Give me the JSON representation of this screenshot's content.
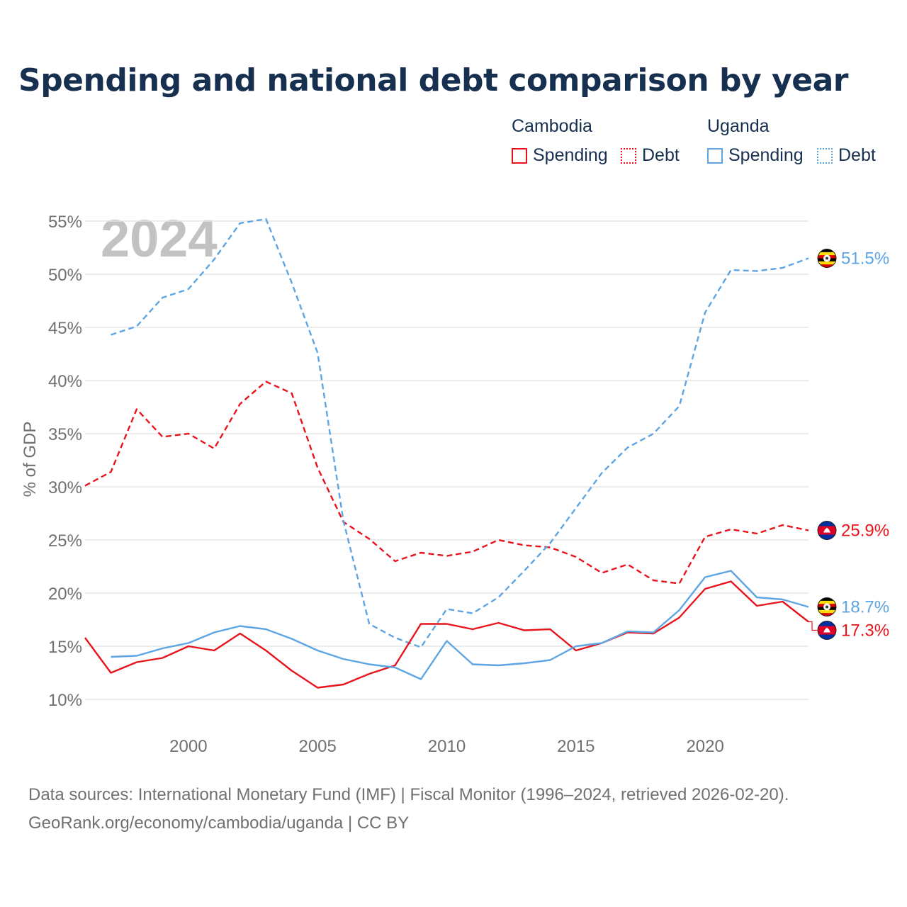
{
  "header": {
    "title": "Spending and national debt comparison by year"
  },
  "legend": {
    "groups": [
      {
        "country": "Cambodia",
        "color": "#e8141c",
        "spending_label": "Spending",
        "debt_label": "Debt"
      },
      {
        "country": "Uganda",
        "color": "#5da5e3",
        "spending_label": "Spending",
        "debt_label": "Debt"
      }
    ]
  },
  "footer": {
    "source": "Data sources: International Monetary Fund (IMF) | Fiscal Monitor (1996–2024, retrieved 2026-02-20).",
    "credit": "GeoRank.org/economy/cambodia/uganda | CC BY"
  },
  "chart_data": {
    "type": "line",
    "title": "Spending and national debt comparison by year",
    "watermark_year": "2024",
    "xlabel": "",
    "ylabel": "% of GDP",
    "xlim": [
      1996,
      2024
    ],
    "ylim": [
      7,
      57
    ],
    "x_ticks": [
      2000,
      2005,
      2010,
      2015,
      2020
    ],
    "y_ticks": [
      10,
      15,
      20,
      25,
      30,
      35,
      40,
      45,
      50,
      55
    ],
    "y_tick_suffix": "%",
    "grid": true,
    "series": [
      {
        "name": "Cambodia Debt",
        "country": "Cambodia",
        "metric": "Debt",
        "flag": "cambodia",
        "color": "#e8141c",
        "dash": true,
        "end_label": "25.9%",
        "points": [
          [
            1996,
            30.1
          ],
          [
            1997,
            31.4
          ],
          [
            1998,
            37.3
          ],
          [
            1999,
            34.7
          ],
          [
            2000,
            35.0
          ],
          [
            2001,
            33.6
          ],
          [
            2002,
            37.8
          ],
          [
            2003,
            39.9
          ],
          [
            2004,
            38.8
          ],
          [
            2005,
            31.8
          ],
          [
            2006,
            26.7
          ],
          [
            2007,
            25.1
          ],
          [
            2008,
            23.0
          ],
          [
            2009,
            23.8
          ],
          [
            2010,
            23.5
          ],
          [
            2011,
            23.9
          ],
          [
            2012,
            25.0
          ],
          [
            2013,
            24.5
          ],
          [
            2014,
            24.3
          ],
          [
            2015,
            23.4
          ],
          [
            2016,
            21.9
          ],
          [
            2017,
            22.7
          ],
          [
            2018,
            21.2
          ],
          [
            2019,
            20.9
          ],
          [
            2020,
            25.3
          ],
          [
            2021,
            26.0
          ],
          [
            2022,
            25.6
          ],
          [
            2023,
            26.4
          ],
          [
            2024,
            25.9
          ]
        ]
      },
      {
        "name": "Uganda Debt",
        "country": "Uganda",
        "metric": "Debt",
        "flag": "uganda",
        "color": "#5da5e3",
        "dash": true,
        "end_label": "51.5%",
        "points": [
          [
            1997,
            44.3
          ],
          [
            1998,
            45.1
          ],
          [
            1999,
            47.8
          ],
          [
            2000,
            48.6
          ],
          [
            2001,
            51.4
          ],
          [
            2002,
            54.8
          ],
          [
            2003,
            55.2
          ],
          [
            2004,
            49.2
          ],
          [
            2005,
            42.6
          ],
          [
            2006,
            26.8
          ],
          [
            2007,
            17.1
          ],
          [
            2008,
            15.8
          ],
          [
            2009,
            14.9
          ],
          [
            2010,
            18.5
          ],
          [
            2011,
            18.1
          ],
          [
            2012,
            19.6
          ],
          [
            2013,
            22.1
          ],
          [
            2014,
            24.7
          ],
          [
            2015,
            28.0
          ],
          [
            2016,
            31.3
          ],
          [
            2017,
            33.7
          ],
          [
            2018,
            35.0
          ],
          [
            2019,
            37.6
          ],
          [
            2020,
            46.4
          ],
          [
            2021,
            50.4
          ],
          [
            2022,
            50.3
          ],
          [
            2023,
            50.6
          ],
          [
            2024,
            51.5
          ]
        ]
      },
      {
        "name": "Cambodia Spending",
        "country": "Cambodia",
        "metric": "Spending",
        "flag": "cambodia",
        "color": "#e8141c",
        "dash": false,
        "end_label": "17.3%",
        "points": [
          [
            1996,
            15.8
          ],
          [
            1997,
            12.5
          ],
          [
            1998,
            13.5
          ],
          [
            1999,
            13.9
          ],
          [
            2000,
            15.0
          ],
          [
            2001,
            14.6
          ],
          [
            2002,
            16.2
          ],
          [
            2003,
            14.6
          ],
          [
            2004,
            12.7
          ],
          [
            2005,
            11.1
          ],
          [
            2006,
            11.4
          ],
          [
            2007,
            12.4
          ],
          [
            2008,
            13.2
          ],
          [
            2009,
            17.1
          ],
          [
            2010,
            17.1
          ],
          [
            2011,
            16.6
          ],
          [
            2012,
            17.2
          ],
          [
            2013,
            16.5
          ],
          [
            2014,
            16.6
          ],
          [
            2015,
            14.6
          ],
          [
            2016,
            15.3
          ],
          [
            2017,
            16.3
          ],
          [
            2018,
            16.2
          ],
          [
            2019,
            17.7
          ],
          [
            2020,
            20.4
          ],
          [
            2021,
            21.1
          ],
          [
            2022,
            18.8
          ],
          [
            2023,
            19.2
          ],
          [
            2024,
            17.3
          ]
        ]
      },
      {
        "name": "Uganda Spending",
        "country": "Uganda",
        "metric": "Spending",
        "flag": "uganda",
        "color": "#5da5e3",
        "dash": false,
        "end_label": "18.7%",
        "points": [
          [
            1997,
            14.0
          ],
          [
            1998,
            14.1
          ],
          [
            1999,
            14.8
          ],
          [
            2000,
            15.3
          ],
          [
            2001,
            16.3
          ],
          [
            2002,
            16.9
          ],
          [
            2003,
            16.6
          ],
          [
            2004,
            15.7
          ],
          [
            2005,
            14.6
          ],
          [
            2006,
            13.8
          ],
          [
            2007,
            13.3
          ],
          [
            2008,
            13.0
          ],
          [
            2009,
            11.9
          ],
          [
            2010,
            15.5
          ],
          [
            2011,
            13.3
          ],
          [
            2012,
            13.2
          ],
          [
            2013,
            13.4
          ],
          [
            2014,
            13.7
          ],
          [
            2015,
            15.0
          ],
          [
            2016,
            15.3
          ],
          [
            2017,
            16.4
          ],
          [
            2018,
            16.3
          ],
          [
            2019,
            18.4
          ],
          [
            2020,
            21.5
          ],
          [
            2021,
            22.1
          ],
          [
            2022,
            19.6
          ],
          [
            2023,
            19.4
          ],
          [
            2024,
            18.7
          ]
        ]
      }
    ]
  }
}
